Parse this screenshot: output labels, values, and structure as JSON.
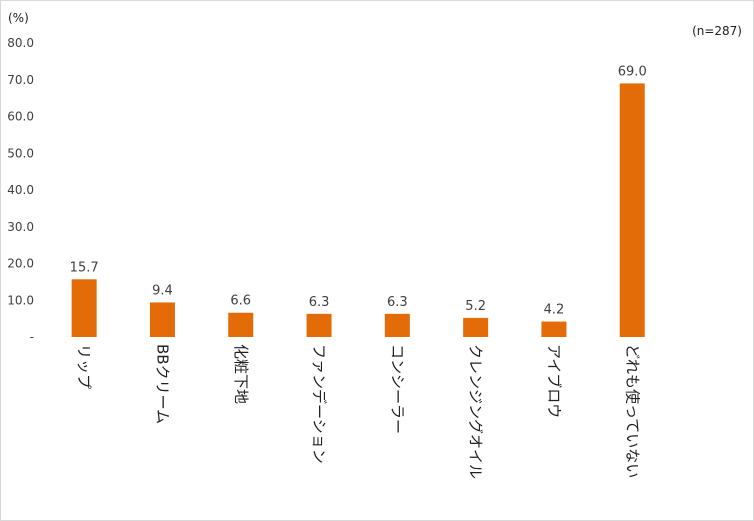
{
  "chart_data": {
    "type": "bar",
    "unit_label": "(%)",
    "sample_note": "(n=287)",
    "categories": [
      "リップ",
      "BBクリーム",
      "化粧下地",
      "ファンデーション",
      "コンシーラー",
      "クレンジングオイル",
      "アイブロウ",
      "どれも使っていない"
    ],
    "values": [
      15.7,
      9.4,
      6.6,
      6.3,
      6.3,
      5.2,
      4.2,
      69.0
    ],
    "value_labels": [
      "15.7",
      "9.4",
      "6.6",
      "6.3",
      "6.3",
      "5.2",
      "4.2",
      "69.0"
    ],
    "ylim": [
      0,
      80
    ],
    "yticks": [
      0,
      10,
      20,
      30,
      40,
      50,
      60,
      70,
      80
    ],
    "ytick_labels": [
      "-",
      "10.0",
      "20.0",
      "30.0",
      "40.0",
      "50.0",
      "60.0",
      "70.0",
      "80.0"
    ],
    "bar_color": "#e36c09",
    "grid": false,
    "legend": "none"
  }
}
